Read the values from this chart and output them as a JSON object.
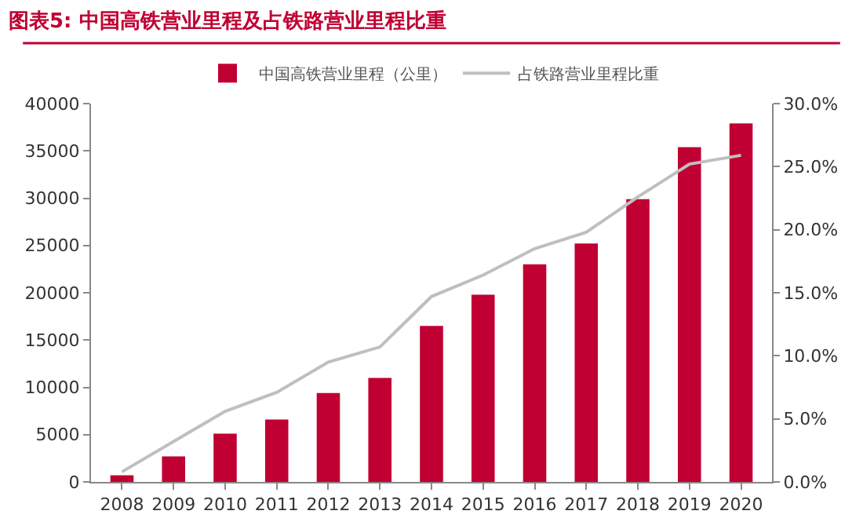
{
  "chart_data": {
    "type": "bar",
    "title": "图表5: 中国高铁营业里程及占铁路营业里程比重",
    "categories": [
      "2008",
      "2009",
      "2010",
      "2011",
      "2012",
      "2013",
      "2014",
      "2015",
      "2016",
      "2017",
      "2018",
      "2019",
      "2020"
    ],
    "series": [
      {
        "name": "中国高铁营业里程（公里）",
        "color": "#c00033",
        "values": [
          700,
          2700,
          5100,
          6600,
          9400,
          11000,
          16500,
          19800,
          23000,
          25200,
          29900,
          35400,
          37900
        ]
      },
      {
        "name": "占铁路营业里程比重",
        "type": "line",
        "axis": "y2",
        "color": "#bfbfbf",
        "values": [
          0.8,
          3.2,
          5.6,
          7.1,
          9.5,
          10.7,
          14.7,
          16.4,
          18.5,
          19.8,
          22.6,
          25.2,
          25.9
        ]
      }
    ],
    "ylim": [
      0,
      40000
    ],
    "yticks": [
      0,
      5000,
      10000,
      15000,
      20000,
      25000,
      30000,
      35000,
      40000
    ],
    "y2lim": [
      0,
      30
    ],
    "y2ticks": [
      {
        "value": 0,
        "label": "0.0%"
      },
      {
        "value": 5,
        "label": "5.0%"
      },
      {
        "value": 10,
        "label": "10.0%"
      },
      {
        "value": 15,
        "label": "15.0%"
      },
      {
        "value": 20,
        "label": "20.0%"
      },
      {
        "value": 25,
        "label": "25.0%"
      },
      {
        "value": 30,
        "label": "30.0%"
      }
    ],
    "grid": false,
    "legend": "top",
    "marker": "none"
  }
}
